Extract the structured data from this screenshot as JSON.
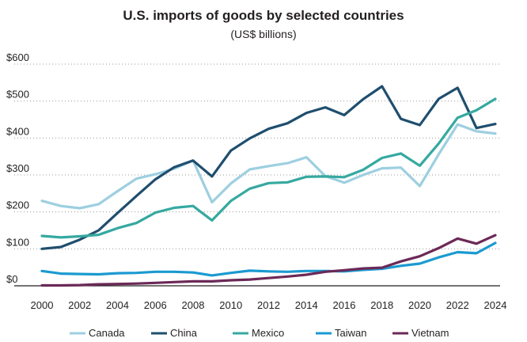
{
  "chart_data": {
    "type": "line",
    "title": "U.S. imports of goods by selected countries",
    "subtitle": "(US$ billions)",
    "xlabel": "",
    "ylabel": "",
    "xlim": [
      2000,
      2024
    ],
    "ylim": [
      0,
      600
    ],
    "x_ticks": [
      "2000",
      "2002",
      "2004",
      "2006",
      "2008",
      "2010",
      "2012",
      "2014",
      "2016",
      "2018",
      "2020",
      "2022",
      "2024"
    ],
    "y_ticks": [
      "$0",
      "$100",
      "$200",
      "$300",
      "$400",
      "$500",
      "$600"
    ],
    "grid": "horizontal dotted",
    "legend_position": "bottom",
    "x": [
      2000,
      2001,
      2002,
      2003,
      2004,
      2005,
      2006,
      2007,
      2008,
      2009,
      2010,
      2011,
      2012,
      2013,
      2014,
      2015,
      2016,
      2017,
      2018,
      2019,
      2020,
      2021,
      2022,
      2023,
      2024
    ],
    "series": [
      {
        "name": "Canada",
        "color": "#9dcfe0",
        "values": [
          230,
          216,
          210,
          221,
          256,
          290,
          302,
          317,
          339,
          226,
          277,
          315,
          324,
          332,
          348,
          297,
          279,
          300,
          318,
          320,
          270,
          356,
          437,
          418,
          412
        ]
      },
      {
        "name": "China",
        "color": "#1f4e6e",
        "values": [
          100,
          105,
          125,
          150,
          197,
          243,
          288,
          321,
          339,
          296,
          366,
          399,
          425,
          440,
          468,
          483,
          462,
          505,
          540,
          452,
          435,
          506,
          536,
          427,
          438
        ]
      },
      {
        "name": "Mexico",
        "color": "#35a9a0",
        "values": [
          135,
          131,
          134,
          138,
          156,
          170,
          198,
          211,
          216,
          177,
          230,
          263,
          278,
          280,
          295,
          296,
          294,
          314,
          346,
          358,
          325,
          385,
          455,
          475,
          506
        ]
      },
      {
        "name": "Taiwan",
        "color": "#1b9ad0",
        "values": [
          40,
          33,
          32,
          31,
          34,
          35,
          38,
          38,
          36,
          28,
          35,
          41,
          39,
          38,
          40,
          40,
          39,
          43,
          46,
          54,
          60,
          77,
          91,
          88,
          116
        ]
      },
      {
        "name": "Vietnam",
        "color": "#6b2957",
        "values": [
          1,
          1,
          2,
          4,
          5,
          6,
          8,
          10,
          12,
          12,
          15,
          17,
          21,
          25,
          30,
          38,
          42,
          47,
          49,
          66,
          80,
          102,
          128,
          114,
          137
        ]
      }
    ]
  }
}
